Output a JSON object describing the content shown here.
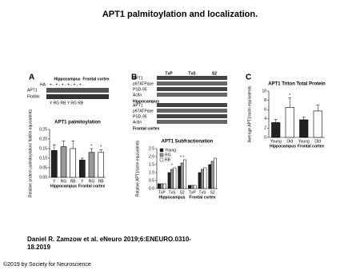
{
  "title": "APT1 palmitoylation and localization.",
  "panel_labels": [
    "A",
    "B",
    "C"
  ],
  "blots": {
    "A": {
      "regions": [
        "Hippocampus",
        "Frontal cortex"
      ],
      "ha_label": "HA",
      "ha_row": "+ - + - + - + - + - + -",
      "lanes": "Y RG RB Y RG RB",
      "rows": [
        "APT1",
        "Flotillin"
      ]
    },
    "B": {
      "fractions": [
        "TxP",
        "TxS",
        "S2"
      ],
      "rows": [
        "APT1",
        "p97ATPase",
        "PSD-95",
        "Actin"
      ],
      "regions": [
        "Hippocampus",
        "Frontal cortex"
      ]
    }
  },
  "chart_data": [
    {
      "type": "bar",
      "title": "APT1 palmitoylation",
      "ylabel": "Relative protein palmitoylation/ flotillin equivalents",
      "categories": [
        "Y",
        "RG",
        "RB",
        "Y",
        "RG",
        "RB"
      ],
      "groups": [
        "Hippocampus",
        "Frontal cortex"
      ],
      "values": [
        0.14,
        0.16,
        0.15,
        0.09,
        0.13,
        0.13
      ],
      "errors": [
        0.03,
        0.03,
        0.04,
        0.01,
        0.02,
        0.015
      ],
      "colors": [
        "#222222",
        "#999999",
        "#ffffff",
        "#222222",
        "#999999",
        "#ffffff"
      ],
      "stars": [
        null,
        null,
        null,
        null,
        "*",
        "*"
      ],
      "ylim": [
        0,
        0.25
      ],
      "yticks": [
        {
          "value": 0,
          "label": "0.00"
        },
        0.05,
        {
          "value": 0.1,
          "label": "0.10"
        },
        0.15,
        {
          "value": 0.2,
          "label": "0.20"
        },
        0.25
      ]
    },
    {
      "type": "grouped-bar",
      "title": "APT1 Subfractionation",
      "ylabel": "Relative APT1/actin equivalents",
      "categories": [
        "TxP",
        "TxS",
        "S2",
        "TxP",
        "TxS",
        "S2"
      ],
      "groups": [
        "Hippocampus",
        "Frontal cortex"
      ],
      "series": [
        {
          "name": "Young",
          "color": "#222222",
          "values": [
            0.3,
            1.0,
            1.4,
            0.2,
            1.0,
            1.5
          ]
        },
        {
          "name": "RG",
          "color": "#999999",
          "values": [
            0.3,
            1.2,
            1.6,
            0.2,
            1.2,
            1.7
          ]
        },
        {
          "name": "RB",
          "color": "#ffffff",
          "values": [
            0.3,
            1.3,
            1.8,
            0.2,
            1.3,
            1.9
          ]
        }
      ],
      "stars": [
        null,
        "*",
        "* *",
        null,
        null,
        null
      ],
      "ylim": [
        0,
        2.5
      ],
      "yticks": [
        {
          "value": 0,
          "label": "0.0"
        },
        0.5,
        {
          "value": 1,
          "label": "1.0"
        },
        1.5,
        {
          "value": 2,
          "label": "2.0"
        },
        2.5
      ]
    },
    {
      "type": "bar",
      "title": "APT1 Triton Total Protein",
      "ylabel": "Average APT1/actin equivalents",
      "categories": [
        "Young",
        "Old",
        "Young",
        "Old"
      ],
      "groups": [
        "Hippocampus",
        "Frontal cortex"
      ],
      "values": [
        3.2,
        6.5,
        3.8,
        5.7
      ],
      "errors": [
        0.7,
        2.0,
        0.6,
        1.3
      ],
      "colors": [
        "#222222",
        "#ffffff",
        "#222222",
        "#ffffff"
      ],
      "stars": [
        null,
        "*",
        null,
        null
      ],
      "ylim": [
        0,
        10
      ],
      "yticks": [
        0,
        2,
        4,
        6,
        8,
        10
      ]
    }
  ],
  "citation": [
    "Daniel R. Zamzow et al. eNeuro 2019;6:ENEURO.0310-",
    "18.2019"
  ],
  "copyright": "©2019 by Society for Neuroscience"
}
